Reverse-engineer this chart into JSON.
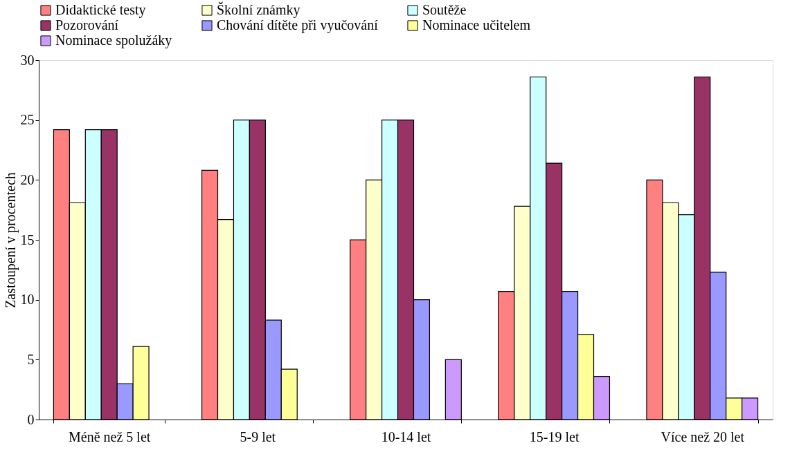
{
  "chart_data": {
    "type": "bar",
    "ylabel": "Zastoupení v procentech",
    "categories": [
      "Méně než 5 let",
      "5-9 let",
      "10-14 let",
      "15-19 let",
      "Více než 20 let"
    ],
    "series": [
      {
        "name": "Didaktické testy",
        "color": "#ff8080",
        "values": [
          24.2,
          20.8,
          15.0,
          10.7,
          20.0
        ]
      },
      {
        "name": "Školní známky",
        "color": "#ffffcc",
        "values": [
          18.1,
          16.7,
          20.0,
          17.8,
          18.1
        ]
      },
      {
        "name": "Soutěže",
        "color": "#ccffff",
        "values": [
          24.2,
          25.0,
          25.0,
          28.6,
          17.1
        ]
      },
      {
        "name": "Pozorování",
        "color": "#993366",
        "values": [
          24.2,
          25.0,
          25.0,
          21.4,
          28.6
        ]
      },
      {
        "name": "Chování dítěte při vyučování",
        "color": "#9999ff",
        "values": [
          3.0,
          8.3,
          10.0,
          10.7,
          12.3
        ]
      },
      {
        "name": "Nominace učitelem",
        "color": "#ffff99",
        "values": [
          6.1,
          4.2,
          null,
          7.1,
          1.8
        ]
      },
      {
        "name": "Nominace spolužáky",
        "color": "#cc99ff",
        "values": [
          null,
          null,
          5.0,
          3.6,
          1.8
        ]
      }
    ],
    "ylim": [
      0,
      30
    ],
    "yticks": [
      0,
      5,
      10,
      15,
      20,
      25,
      30
    ],
    "grid": false,
    "legend": "top"
  }
}
